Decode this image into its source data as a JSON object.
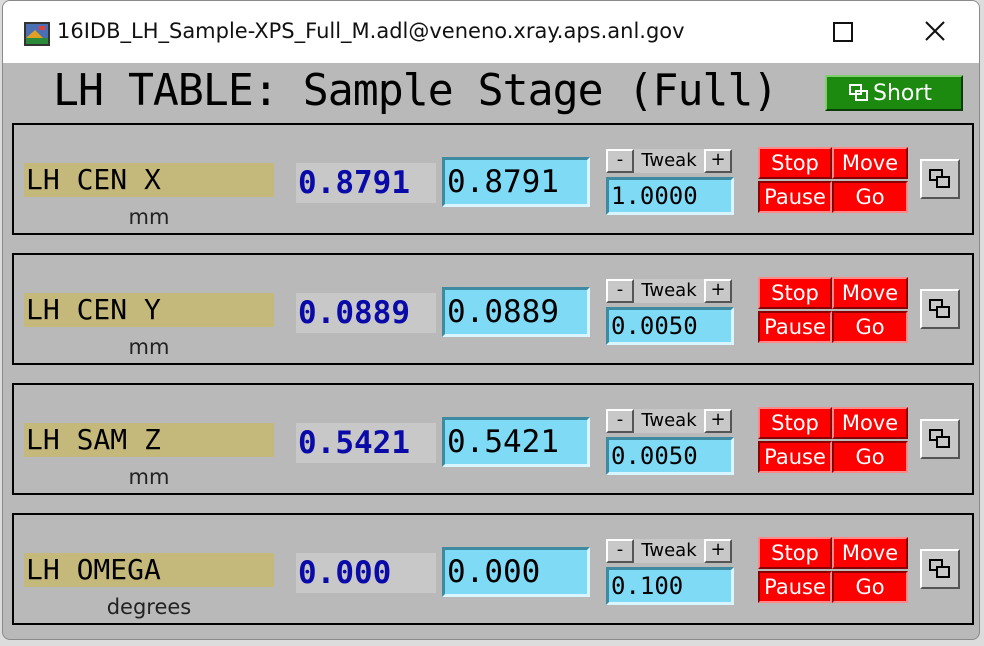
{
  "window": {
    "title": "16IDB_LH_Sample-XPS_Full_M.adl@veneno.xray.aps.anl.gov",
    "app_icon": "medm-app-icon",
    "controls": [
      "maximize-icon",
      "close-icon"
    ]
  },
  "header": {
    "title": "LH TABLE: Sample Stage (Full)",
    "short_label": "Short",
    "short_icon": "related-display-icon"
  },
  "colors": {
    "background": "#b9b9b9",
    "label_bg": "#c4b97a",
    "readback_text": "#0a0aa8",
    "entry_bg": "#7fdaf5",
    "stop_move": "#ff0000",
    "short_button": "#1b8a0f"
  },
  "motors": [
    {
      "label": "LH CEN X",
      "units": "mm",
      "readback": "0.8791",
      "setpoint": "0.8791",
      "tweak_label": "Tweak",
      "tweak_minus": "-",
      "tweak_plus": "+",
      "tweak_value": "1.0000",
      "stop": "Stop",
      "move": "Move",
      "pause": "Pause",
      "go": "Go"
    },
    {
      "label": "LH CEN Y",
      "units": "mm",
      "readback": "0.0889",
      "setpoint": "0.0889",
      "tweak_label": "Tweak",
      "tweak_minus": "-",
      "tweak_plus": "+",
      "tweak_value": "0.0050",
      "stop": "Stop",
      "move": "Move",
      "pause": "Pause",
      "go": "Go"
    },
    {
      "label": "LH SAM Z",
      "units": "mm",
      "readback": "0.5421",
      "setpoint": "0.5421",
      "tweak_label": "Tweak",
      "tweak_minus": "-",
      "tweak_plus": "+",
      "tweak_value": "0.0050",
      "stop": "Stop",
      "move": "Move",
      "pause": "Pause",
      "go": "Go"
    },
    {
      "label": "LH OMEGA",
      "units": "degrees",
      "readback": "0.000",
      "setpoint": "0.000",
      "tweak_label": "Tweak",
      "tweak_minus": "-",
      "tweak_plus": "+",
      "tweak_value": "0.100",
      "stop": "Stop",
      "move": "Move",
      "pause": "Pause",
      "go": "Go"
    }
  ]
}
